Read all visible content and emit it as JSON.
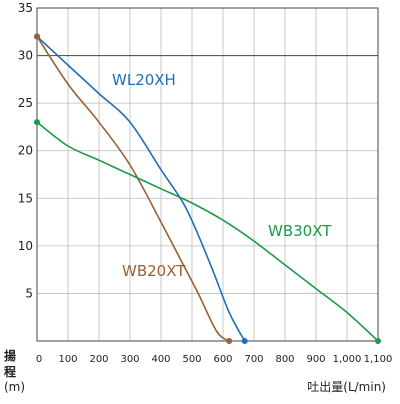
{
  "chart_data": {
    "type": "line",
    "title": "",
    "ylabel": "揚程",
    "ylabel_unit": "(m)",
    "xlabel": "吐出量(L/min)",
    "xlim": [
      0,
      1100
    ],
    "ylim": [
      0,
      35
    ],
    "x_ticks": [
      0,
      100,
      200,
      300,
      400,
      500,
      600,
      700,
      800,
      900,
      1000,
      1100
    ],
    "x_tick_labels": [
      "0",
      "100",
      "200",
      "300",
      "400",
      "500",
      "600",
      "700",
      "800",
      "900",
      "1,000",
      "1,100"
    ],
    "y_ticks": [
      5,
      10,
      15,
      20,
      25,
      30,
      35
    ],
    "y_tick_labels": [
      "5",
      "10",
      "15",
      "20",
      "25",
      "30",
      "35"
    ],
    "grid": true,
    "reference_line_y": 30,
    "series": [
      {
        "name": "WL20XH",
        "color": "#1f6fb5",
        "x": [
          0,
          100,
          200,
          300,
          400,
          480,
          560,
          620,
          670
        ],
        "y": [
          32,
          29,
          26,
          23,
          18,
          14,
          8,
          3,
          0
        ]
      },
      {
        "name": "WB20XT",
        "color": "#9a6035",
        "x": [
          0,
          100,
          200,
          300,
          400,
          480,
          520,
          580,
          620
        ],
        "y": [
          32,
          27,
          23,
          18.5,
          12.5,
          7.5,
          5,
          1,
          0
        ]
      },
      {
        "name": "WB30XT",
        "color": "#1a9a48",
        "x": [
          0,
          100,
          200,
          300,
          400,
          500,
          600,
          700,
          800,
          900,
          1000,
          1100
        ],
        "y": [
          23,
          20.5,
          19,
          17.5,
          16,
          14.5,
          12.7,
          10.5,
          8,
          5.5,
          3,
          0
        ]
      }
    ]
  }
}
